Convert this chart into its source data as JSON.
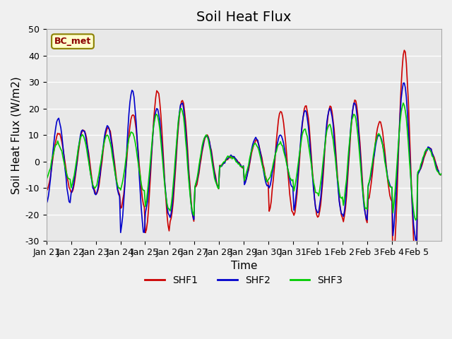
{
  "title": "Soil Heat Flux",
  "ylabel": "Soil Heat Flux (W/m2)",
  "xlabel": "Time",
  "ylim": [
    -30,
    50
  ],
  "yticks": [
    -30,
    -20,
    -10,
    0,
    10,
    20,
    30,
    40,
    50
  ],
  "x_tick_labels": [
    "Jan 21",
    "Jan 22",
    "Jan 23",
    "Jan 24",
    "Jan 25",
    "Jan 26",
    "Jan 27",
    "Jan 28",
    "Jan 29",
    "Jan 30",
    "Jan 31",
    "Feb 1",
    "Feb 2",
    "Feb 3",
    "Feb 4",
    "Feb 5"
  ],
  "line_colors": [
    "#cc0000",
    "#0000cc",
    "#00cc00"
  ],
  "line_labels": [
    "SHF1",
    "SHF2",
    "SHF3"
  ],
  "legend_label": "BC_met",
  "background_color": "#e8e8e8",
  "grid_color": "#ffffff",
  "title_fontsize": 14,
  "label_fontsize": 11,
  "tick_fontsize": 9
}
